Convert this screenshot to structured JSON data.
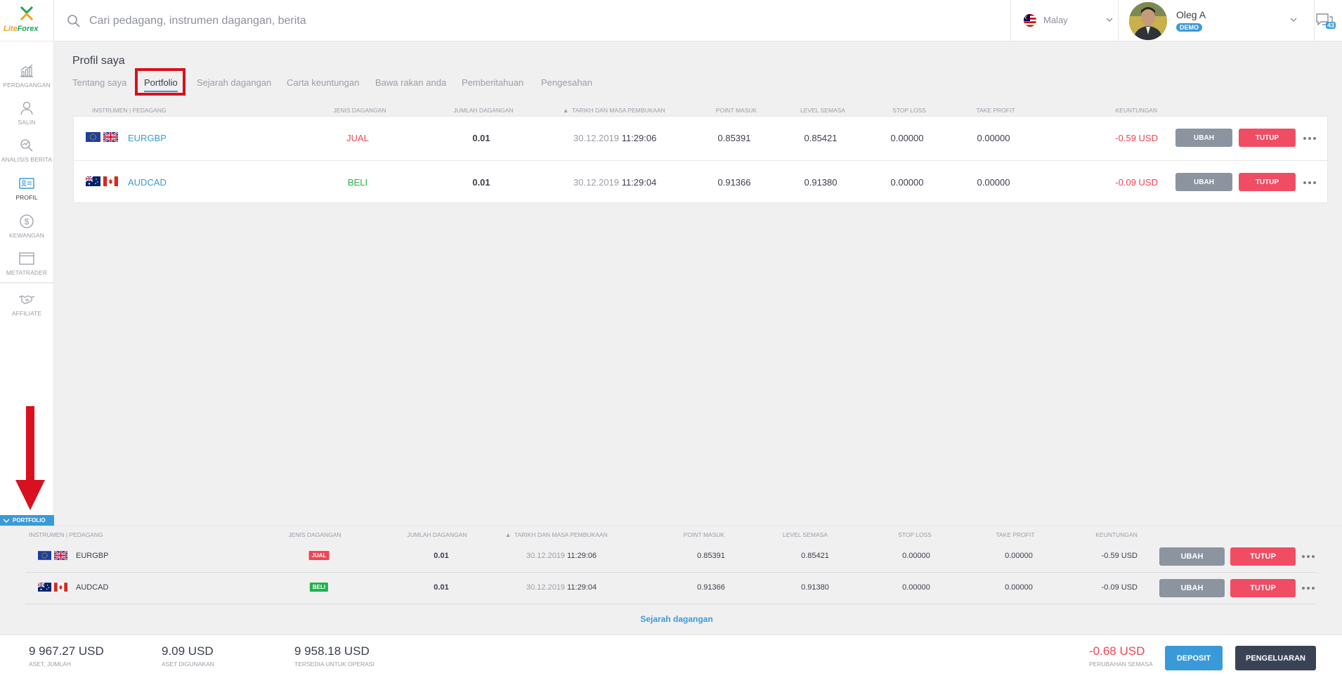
{
  "app": {
    "logo_prefix": "Lite",
    "logo_suffix": "Forex"
  },
  "search": {
    "placeholder": "Cari pedagang, instrumen dagangan, berita"
  },
  "language": {
    "label": "Malay"
  },
  "user": {
    "name": "Oleg A",
    "account_type": "DEMO"
  },
  "chat": {
    "count": "43"
  },
  "sidebar": {
    "items": [
      {
        "label": "PERDAGANGAN",
        "icon": "chart-icon"
      },
      {
        "label": "SALIN",
        "icon": "user-copy-icon"
      },
      {
        "label": "ANALISIS BERITA",
        "icon": "news-analysis-icon"
      },
      {
        "label": "PROFIL",
        "icon": "profile-card-icon"
      },
      {
        "label": "KEWANGAN",
        "icon": "dollar-icon"
      },
      {
        "label": "METATRADER",
        "icon": "window-icon"
      },
      {
        "label": "AFFILIATE",
        "icon": "handshake-icon"
      }
    ],
    "active_index": 3
  },
  "page": {
    "title": "Profil saya",
    "tabs": [
      {
        "label": "Tentang saya"
      },
      {
        "label": "Portfolio"
      },
      {
        "label": "Sejarah dagangan"
      },
      {
        "label": "Carta keuntungan"
      },
      {
        "label": "Bawa rakan anda"
      },
      {
        "label": "Pemberitahuan"
      },
      {
        "label": "Pengesahan"
      }
    ],
    "active_tab": 1
  },
  "table": {
    "headers": {
      "instrument": "INSTRUMEN | PEDAGANG",
      "type": "JENIS DAGANGAN",
      "volume": "JUMLAH DAGANGAN",
      "open_time": "TARIKH DAN MASA PEMBUKAAN",
      "open_time_sort": "▲",
      "entry": "POINT MASUK",
      "current": "LEVEL SEMASA",
      "stop_loss": "STOP LOSS",
      "take_profit": "TAKE PROFIT",
      "profit": "KEUNTUNGAN"
    },
    "rows": [
      {
        "symbol": "EURGBP",
        "flags": [
          "eu",
          "gb"
        ],
        "type": "JUAL",
        "side": "sell",
        "volume": "0.01",
        "date": "30.12.2019",
        "time": "11:29:06",
        "entry": "0.85391",
        "current": "0.85421",
        "stop_loss": "0.00000",
        "take_profit": "0.00000",
        "profit": "-0.59 USD",
        "edit_label": "UBAH",
        "close_label": "TUTUP"
      },
      {
        "symbol": "AUDCAD",
        "flags": [
          "au",
          "ca"
        ],
        "type": "BELI",
        "side": "buy",
        "volume": "0.01",
        "date": "30.12.2019",
        "time": "11:29:04",
        "entry": "0.91366",
        "current": "0.91380",
        "stop_loss": "0.00000",
        "take_profit": "0.00000",
        "profit": "-0.09 USD",
        "edit_label": "UBAH",
        "close_label": "TUTUP"
      }
    ]
  },
  "bottom_panel": {
    "tab_label": "PORTFOLIO",
    "history_link": "Sejarah dagangan"
  },
  "footer": {
    "stats": [
      {
        "value": "9 967.27 USD",
        "label": "ASET, JUMLAH"
      },
      {
        "value": "9.09 USD",
        "label": "ASET DIGUNAKAN"
      },
      {
        "value": "9 958.18 USD",
        "label": "TERSEDIA UNTUK OPERASI"
      }
    ],
    "change": {
      "value": "-0.68 USD",
      "label": "PERUBAHAN SEMASA"
    },
    "deposit_label": "DEPOSIT",
    "withdraw_label": "PENGELUARAN"
  },
  "colors": {
    "accent": "#3a9ad9",
    "sell": "#f04454",
    "buy": "#22b14c",
    "highlight": "#d8101f"
  }
}
